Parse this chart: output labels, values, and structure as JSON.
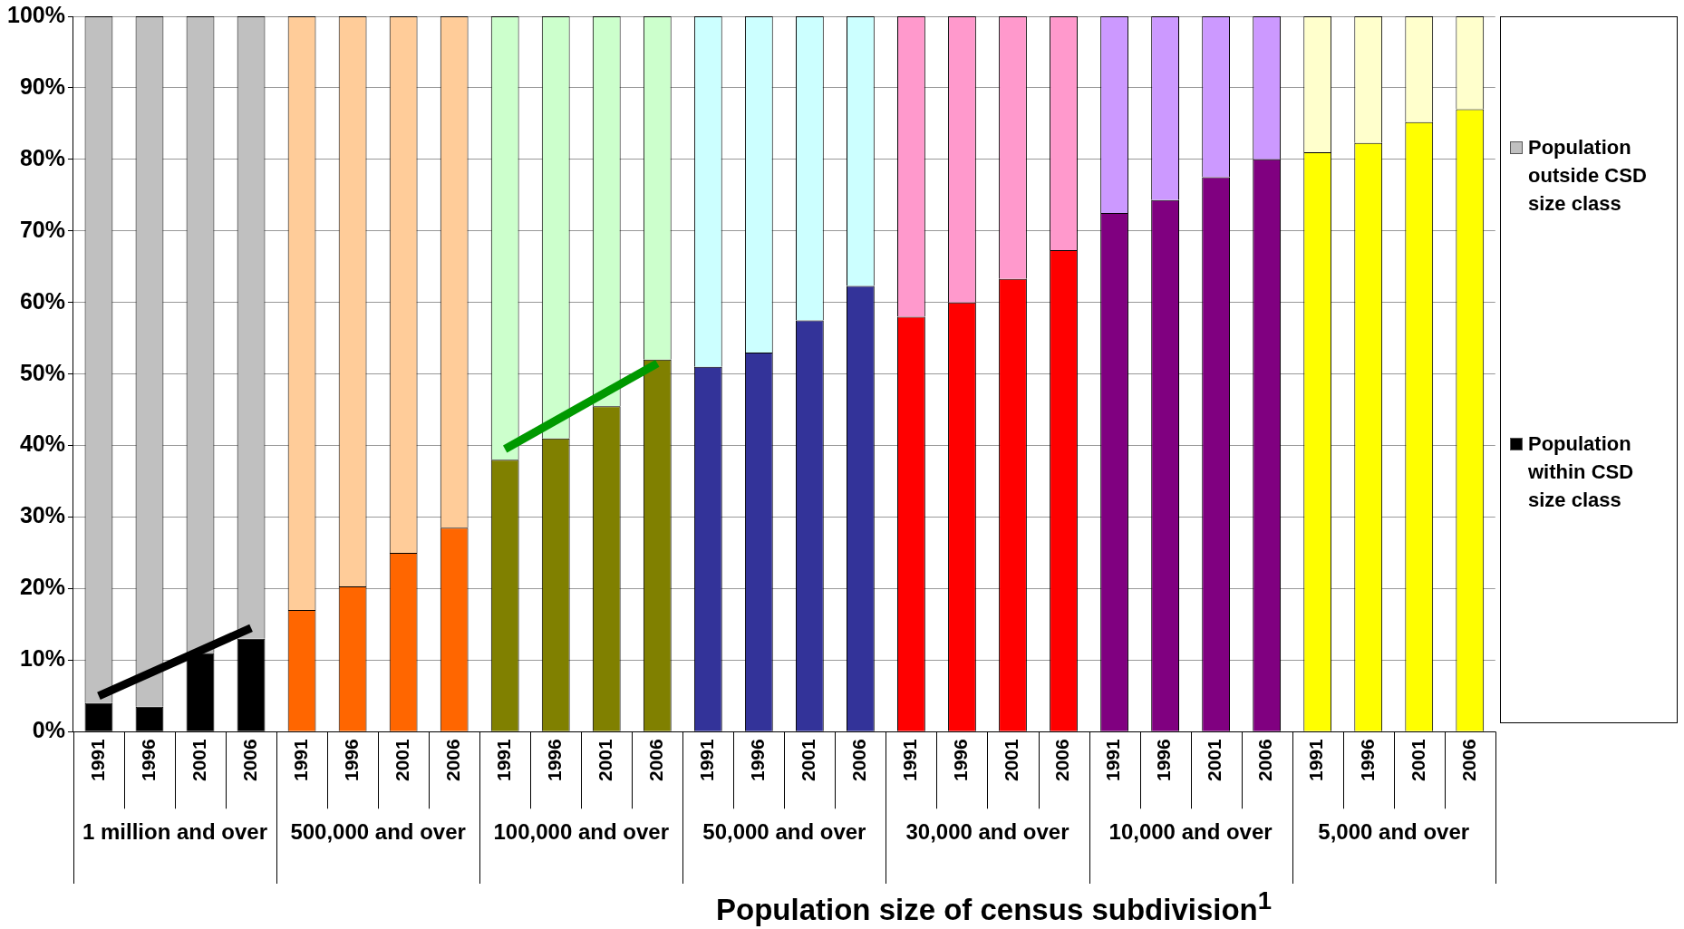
{
  "chart_data": {
    "type": "bar",
    "stacked": true,
    "xlabel": "Population size of census subdivision$^{1}$",
    "categories": [
      "1991",
      "1996",
      "2001",
      "2006",
      "1991",
      "1996",
      "2001",
      "2006",
      "1991",
      "1996",
      "2001",
      "2006",
      "1991",
      "1996",
      "2001",
      "2006",
      "1991",
      "1996",
      "2001",
      "2006",
      "1991",
      "1996",
      "2001",
      "2006",
      "1991",
      "1996",
      "2001",
      "2006"
    ],
    "annotations": [
      "1 million and over",
      "500,000 and over",
      "100,000 and over",
      "50,000 and over",
      "30,000 and over",
      "10,000 and over",
      "5,000 and over"
    ],
    "series": [
      {
        "name": "Population within CSD size class",
        "values": [
          4,
          3.5,
          11,
          13,
          17,
          20.3,
          25,
          28.5,
          38,
          41,
          45.5,
          52,
          51,
          53,
          57.5,
          62.3,
          58,
          60,
          63.3,
          67.3,
          72.5,
          74.3,
          77.5,
          80,
          81,
          82.3,
          85.2,
          87
        ],
        "colors": [
          "#000000",
          "#000000",
          "#000000",
          "#000000",
          "#ff6600",
          "#ff6600",
          "#ff6600",
          "#ff6600",
          "#808000",
          "#808000",
          "#808000",
          "#808000",
          "#333399",
          "#333399",
          "#333399",
          "#333399",
          "#ff0000",
          "#ff0000",
          "#ff0000",
          "#ff0000",
          "#800080",
          "#800080",
          "#800080",
          "#800080",
          "#ffff00",
          "#ffff00",
          "#ffff00",
          "#ffff00"
        ]
      },
      {
        "name": "Population outside CSD size class",
        "values": [
          96,
          96.5,
          89,
          87,
          83,
          79.7,
          75,
          71.5,
          62,
          59,
          54.5,
          48,
          49,
          47,
          42.5,
          37.7,
          42,
          40,
          36.7,
          32.7,
          27.5,
          25.7,
          22.5,
          20,
          19,
          17.7,
          14.8,
          13
        ],
        "colors": [
          "#c0c0c0",
          "#c0c0c0",
          "#c0c0c0",
          "#c0c0c0",
          "#ffcc99",
          "#ffcc99",
          "#ffcc99",
          "#ffcc99",
          "#ccffcc",
          "#ccffcc",
          "#ccffcc",
          "#ccffcc",
          "#ccffff",
          "#ccffff",
          "#ccffff",
          "#ccffff",
          "#ff99cc",
          "#ff99cc",
          "#ff99cc",
          "#ff99cc",
          "#cc99ff",
          "#cc99ff",
          "#cc99ff",
          "#cc99ff",
          "#ffffcc",
          "#ffffcc",
          "#ffffcc",
          "#ffffcc"
        ]
      },
      {
        "type": "line",
        "color": "#000000",
        "values": [
          5,
          null,
          null,
          14.5,
          null,
          null,
          null,
          null,
          null,
          null,
          null,
          null,
          null,
          null,
          null,
          null,
          null,
          null,
          null,
          null,
          null,
          null,
          null,
          null,
          null,
          null,
          null,
          null
        ]
      },
      {
        "type": "line",
        "color": "#009900",
        "values": [
          null,
          null,
          null,
          null,
          null,
          null,
          null,
          null,
          39.5,
          null,
          null,
          51.5,
          null,
          null,
          null,
          null,
          null,
          null,
          null,
          null,
          null,
          null,
          null,
          null,
          null,
          null,
          null,
          null
        ]
      }
    ],
    "ylim": [
      0,
      100
    ],
    "yticks": [
      {
        "value": 0,
        "label": "0%"
      },
      {
        "value": 10,
        "label": "10%"
      },
      {
        "value": 20,
        "label": "20%"
      },
      {
        "value": 30,
        "label": "30%"
      },
      {
        "value": 40,
        "label": "40%"
      },
      {
        "value": 50,
        "label": "50%"
      },
      {
        "value": 60,
        "label": "60%"
      },
      {
        "value": 70,
        "label": "70%"
      },
      {
        "value": 80,
        "label": "80%"
      },
      {
        "value": 90,
        "label": "90%"
      },
      {
        "value": 100,
        "label": "100%"
      }
    ],
    "grid": "y",
    "legend": "right",
    "marker": "none"
  }
}
